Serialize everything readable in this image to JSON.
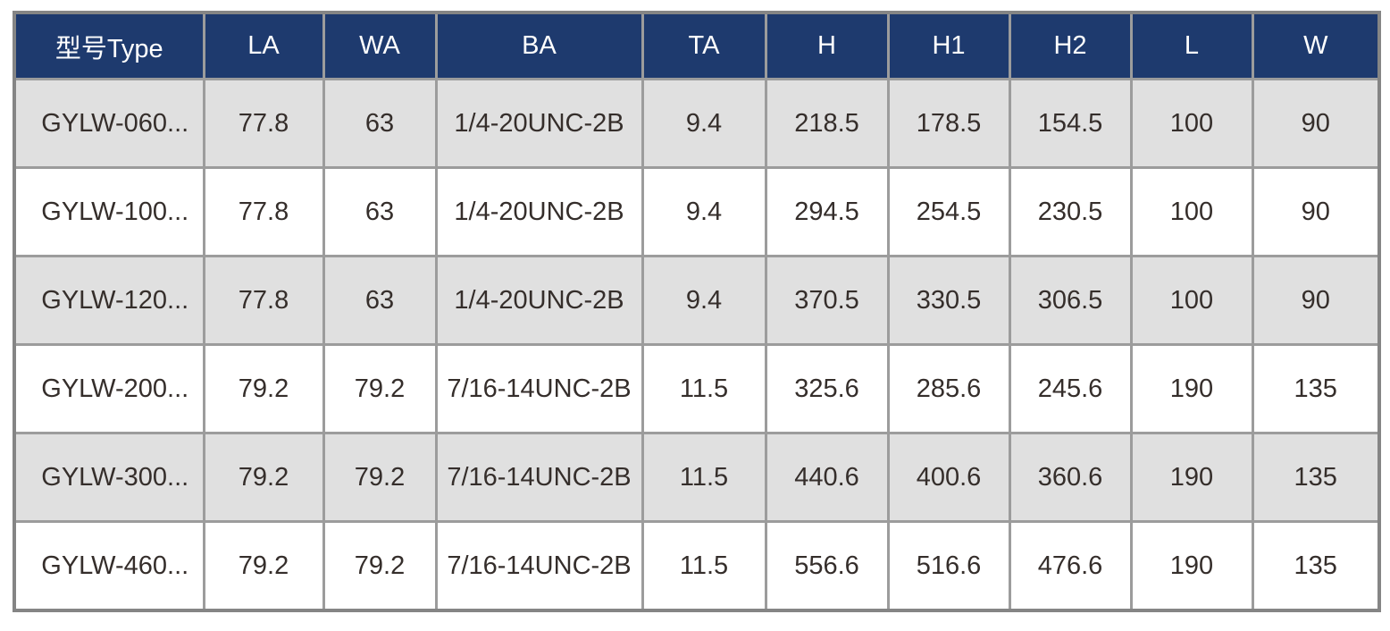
{
  "page": {
    "background": "#ffffff"
  },
  "table": {
    "columns": [
      {
        "key": "type",
        "label": "型号Type"
      },
      {
        "key": "la",
        "label": "LA"
      },
      {
        "key": "wa",
        "label": "WA"
      },
      {
        "key": "ba",
        "label": "BA"
      },
      {
        "key": "ta",
        "label": "TA"
      },
      {
        "key": "h",
        "label": "H"
      },
      {
        "key": "h1",
        "label": "H1"
      },
      {
        "key": "h2",
        "label": "H2"
      },
      {
        "key": "l",
        "label": "L"
      },
      {
        "key": "w",
        "label": "W"
      }
    ],
    "rows": [
      {
        "type": "GYLW-060...",
        "la": "77.8",
        "wa": "63",
        "ba": "1/4-20UNC-2B",
        "ta": "9.4",
        "h": "218.5",
        "h1": "178.5",
        "h2": "154.5",
        "l": "100",
        "w": "90"
      },
      {
        "type": "GYLW-100...",
        "la": "77.8",
        "wa": "63",
        "ba": "1/4-20UNC-2B",
        "ta": "9.4",
        "h": "294.5",
        "h1": "254.5",
        "h2": "230.5",
        "l": "100",
        "w": "90"
      },
      {
        "type": "GYLW-120...",
        "la": "77.8",
        "wa": "63",
        "ba": "1/4-20UNC-2B",
        "ta": "9.4",
        "h": "370.5",
        "h1": "330.5",
        "h2": "306.5",
        "l": "100",
        "w": "90"
      },
      {
        "type": "GYLW-200...",
        "la": "79.2",
        "wa": "79.2",
        "ba": "7/16-14UNC-2B",
        "ta": "11.5",
        "h": "325.6",
        "h1": "285.6",
        "h2": "245.6",
        "l": "190",
        "w": "135"
      },
      {
        "type": "GYLW-300...",
        "la": "79.2",
        "wa": "79.2",
        "ba": "7/16-14UNC-2B",
        "ta": "11.5",
        "h": "440.6",
        "h1": "400.6",
        "h2": "360.6",
        "l": "190",
        "w": "135"
      },
      {
        "type": "GYLW-460...",
        "la": "79.2",
        "wa": "79.2",
        "ba": "7/16-14UNC-2B",
        "ta": "11.5",
        "h": "556.6",
        "h1": "516.6",
        "h2": "476.6",
        "l": "190",
        "w": "135"
      }
    ],
    "colors": {
      "header_bg": "#1e3a6e",
      "header_text": "#ffffff",
      "row_gray_bg": "#e0e0e0",
      "row_white_bg": "#ffffff",
      "cell_text": "#352e2b",
      "border_inner": "#9c9c9c",
      "border_outer": "#858585"
    }
  }
}
